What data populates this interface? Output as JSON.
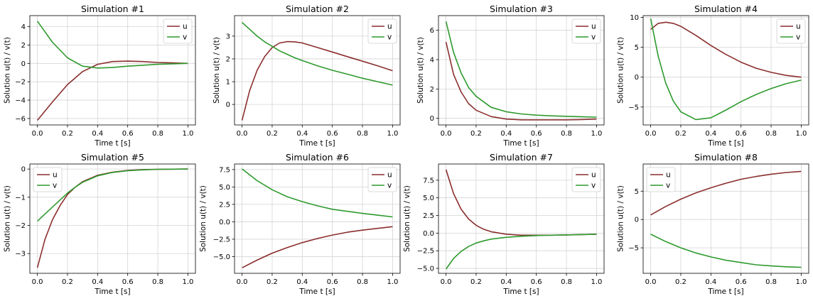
{
  "colors": {
    "u": "#8b2e2e",
    "v": "#2e9a2e"
  },
  "chart_data": [
    {
      "type": "line",
      "title": "Simulation #1",
      "xlabel": "Time t [s]",
      "ylabel": "Solution u(t) / v(t)",
      "xlim": [
        -0.05,
        1.05
      ],
      "ylim": [
        -6.7,
        5.2
      ],
      "yticks": [
        -6,
        -4,
        -2,
        0,
        2,
        4
      ],
      "xticks": [
        0.0,
        0.2,
        0.4,
        0.6,
        0.8,
        1.0
      ],
      "legend": "top-right",
      "x": [
        0.0,
        0.1,
        0.2,
        0.3,
        0.4,
        0.5,
        0.6,
        0.7,
        0.8,
        0.9,
        1.0
      ],
      "series": [
        {
          "name": "u",
          "values": [
            -6.2,
            -4.2,
            -2.3,
            -0.9,
            -0.1,
            0.2,
            0.25,
            0.2,
            0.1,
            0.05,
            0.0
          ]
        },
        {
          "name": "v",
          "values": [
            4.6,
            2.3,
            0.6,
            -0.3,
            -0.5,
            -0.45,
            -0.3,
            -0.2,
            -0.1,
            -0.05,
            0.0
          ]
        }
      ]
    },
    {
      "type": "line",
      "title": "Simulation #2",
      "xlabel": "Time t [s]",
      "ylabel": "Solution u(t) / v(t)",
      "xlim": [
        -0.05,
        1.05
      ],
      "ylim": [
        -0.9,
        3.9
      ],
      "yticks": [
        0,
        1,
        2,
        3
      ],
      "xticks": [
        0.0,
        0.2,
        0.4,
        0.6,
        0.8,
        1.0
      ],
      "legend": "top-right",
      "x": [
        0.0,
        0.05,
        0.1,
        0.15,
        0.2,
        0.25,
        0.3,
        0.35,
        0.4,
        0.5,
        0.6,
        0.7,
        0.8,
        0.9,
        1.0
      ],
      "series": [
        {
          "name": "u",
          "values": [
            -0.7,
            0.6,
            1.5,
            2.1,
            2.5,
            2.7,
            2.76,
            2.75,
            2.7,
            2.5,
            2.3,
            2.1,
            1.9,
            1.7,
            1.48
          ]
        },
        {
          "name": "v",
          "values": [
            3.6,
            3.3,
            3.0,
            2.75,
            2.55,
            2.35,
            2.2,
            2.05,
            1.93,
            1.7,
            1.5,
            1.33,
            1.15,
            1.0,
            0.85
          ]
        }
      ]
    },
    {
      "type": "line",
      "title": "Simulation #3",
      "xlabel": "Time t [s]",
      "ylabel": "Solution u(t) / v(t)",
      "xlim": [
        -0.05,
        1.05
      ],
      "ylim": [
        -0.45,
        7.0
      ],
      "yticks": [
        0,
        2,
        4,
        6
      ],
      "xticks": [
        0.0,
        0.2,
        0.4,
        0.6,
        0.8,
        1.0
      ],
      "legend": "top-right",
      "x": [
        0.0,
        0.05,
        0.1,
        0.15,
        0.2,
        0.3,
        0.4,
        0.5,
        0.6,
        0.7,
        0.8,
        0.9,
        1.0
      ],
      "series": [
        {
          "name": "u",
          "values": [
            5.2,
            3.0,
            1.8,
            1.0,
            0.55,
            0.12,
            -0.05,
            -0.1,
            -0.1,
            -0.1,
            -0.1,
            -0.08,
            -0.05
          ]
        },
        {
          "name": "v",
          "values": [
            6.6,
            4.5,
            3.1,
            2.1,
            1.5,
            0.75,
            0.45,
            0.3,
            0.22,
            0.17,
            0.14,
            0.11,
            0.08
          ]
        }
      ]
    },
    {
      "type": "line",
      "title": "Simulation #4",
      "xlabel": "Time t [s]",
      "ylabel": "Solution u(t) / v(t)",
      "xlim": [
        -0.05,
        1.05
      ],
      "ylim": [
        -8.0,
        10.3
      ],
      "yticks": [
        -5,
        0,
        5,
        10
      ],
      "xticks": [
        0.0,
        0.2,
        0.4,
        0.6,
        0.8,
        1.0
      ],
      "legend": "top-right",
      "x": [
        0.0,
        0.05,
        0.1,
        0.15,
        0.2,
        0.3,
        0.4,
        0.5,
        0.6,
        0.7,
        0.8,
        0.9,
        1.0
      ],
      "series": [
        {
          "name": "u",
          "values": [
            8.0,
            9.0,
            9.2,
            9.0,
            8.5,
            7.0,
            5.3,
            3.8,
            2.5,
            1.5,
            0.8,
            0.3,
            0.0
          ]
        },
        {
          "name": "v",
          "values": [
            9.8,
            3.5,
            -1.0,
            -4.0,
            -5.8,
            -7.1,
            -6.8,
            -5.5,
            -4.1,
            -2.9,
            -1.9,
            -1.1,
            -0.5
          ]
        }
      ]
    },
    {
      "type": "line",
      "title": "Simulation #5",
      "xlabel": "Time t [s]",
      "ylabel": "Solution u(t) / v(t)",
      "xlim": [
        -0.05,
        1.05
      ],
      "ylim": [
        -3.7,
        0.18
      ],
      "yticks": [
        -3,
        -2,
        -1,
        0
      ],
      "xticks": [
        0.0,
        0.2,
        0.4,
        0.6,
        0.8,
        1.0
      ],
      "legend": "top-left",
      "x": [
        0.0,
        0.05,
        0.1,
        0.15,
        0.2,
        0.25,
        0.3,
        0.4,
        0.5,
        0.6,
        0.7,
        0.8,
        0.9,
        1.0
      ],
      "series": [
        {
          "name": "u",
          "values": [
            -3.5,
            -2.5,
            -1.8,
            -1.3,
            -0.9,
            -0.65,
            -0.45,
            -0.22,
            -0.11,
            -0.05,
            -0.02,
            -0.01,
            -0.005,
            0.0
          ]
        },
        {
          "name": "v",
          "values": [
            -1.85,
            -1.6,
            -1.35,
            -1.1,
            -0.85,
            -0.65,
            -0.47,
            -0.24,
            -0.12,
            -0.06,
            -0.03,
            -0.01,
            -0.005,
            0.0
          ]
        }
      ]
    },
    {
      "type": "line",
      "title": "Simulation #6",
      "xlabel": "Time t [s]",
      "ylabel": "Solution u(t) / v(t)",
      "xlim": [
        -0.05,
        1.05
      ],
      "ylim": [
        -7.4,
        8.3
      ],
      "yticks": [
        -5.0,
        -2.5,
        0.0,
        2.5,
        5.0,
        7.5
      ],
      "xticks": [
        0.0,
        0.2,
        0.4,
        0.6,
        0.8,
        1.0
      ],
      "legend": "top-right",
      "x": [
        0.0,
        0.1,
        0.2,
        0.3,
        0.4,
        0.5,
        0.6,
        0.7,
        0.8,
        0.9,
        1.0
      ],
      "series": [
        {
          "name": "u",
          "values": [
            -6.6,
            -5.5,
            -4.5,
            -3.7,
            -3.0,
            -2.4,
            -1.9,
            -1.5,
            -1.2,
            -0.95,
            -0.7
          ]
        },
        {
          "name": "v",
          "values": [
            7.6,
            5.9,
            4.6,
            3.6,
            2.9,
            2.3,
            1.8,
            1.5,
            1.2,
            0.95,
            0.7
          ]
        }
      ]
    },
    {
      "type": "line",
      "title": "Simulation #7",
      "xlabel": "Time t [s]",
      "ylabel": "Solution u(t) / v(t)",
      "xlim": [
        -0.05,
        1.05
      ],
      "ylim": [
        -5.7,
        9.8
      ],
      "yticks": [
        -5.0,
        -2.5,
        0.0,
        2.5,
        5.0,
        7.5
      ],
      "xticks": [
        0.0,
        0.2,
        0.4,
        0.6,
        0.8,
        1.0
      ],
      "legend": "top-right",
      "x": [
        0.0,
        0.05,
        0.1,
        0.15,
        0.2,
        0.25,
        0.3,
        0.4,
        0.5,
        0.6,
        0.7,
        0.8,
        0.9,
        1.0
      ],
      "series": [
        {
          "name": "u",
          "values": [
            9.0,
            5.6,
            3.4,
            2.0,
            1.1,
            0.55,
            0.2,
            -0.15,
            -0.3,
            -0.3,
            -0.3,
            -0.25,
            -0.2,
            -0.15
          ]
        },
        {
          "name": "v",
          "values": [
            -5.1,
            -3.6,
            -2.6,
            -1.9,
            -1.4,
            -1.1,
            -0.85,
            -0.6,
            -0.45,
            -0.35,
            -0.3,
            -0.25,
            -0.2,
            -0.15
          ]
        }
      ]
    },
    {
      "type": "line",
      "title": "Simulation #8",
      "xlabel": "Time t [s]",
      "ylabel": "Solution u(t) / v(t)",
      "xlim": [
        -0.05,
        1.05
      ],
      "ylim": [
        -9.5,
        9.8
      ],
      "yticks": [
        -5,
        0,
        5
      ],
      "xticks": [
        0.0,
        0.2,
        0.4,
        0.6,
        0.8,
        1.0
      ],
      "legend": "top-left",
      "x": [
        0.0,
        0.1,
        0.2,
        0.3,
        0.4,
        0.5,
        0.6,
        0.7,
        0.8,
        0.9,
        1.0
      ],
      "series": [
        {
          "name": "u",
          "values": [
            0.8,
            2.3,
            3.6,
            4.7,
            5.6,
            6.4,
            7.1,
            7.6,
            8.0,
            8.3,
            8.5
          ]
        },
        {
          "name": "v",
          "values": [
            -2.6,
            -3.9,
            -5.0,
            -5.9,
            -6.6,
            -7.2,
            -7.6,
            -8.0,
            -8.2,
            -8.35,
            -8.45
          ]
        }
      ]
    }
  ]
}
